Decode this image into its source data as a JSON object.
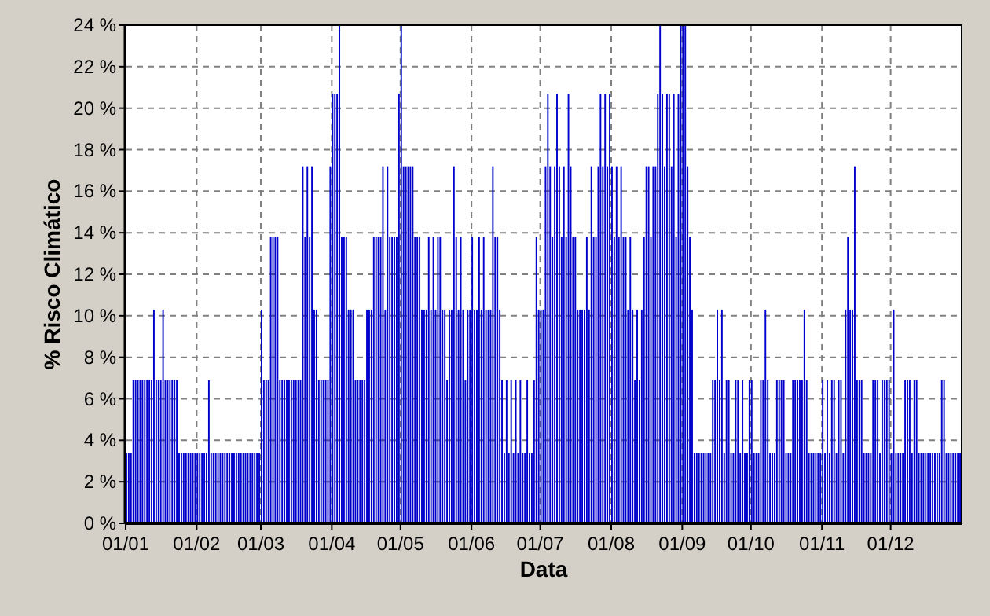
{
  "chart_data": {
    "type": "bar",
    "xlabel": "Data",
    "ylabel": "% Risco Climático",
    "color": "#0000cc",
    "grid": true,
    "xlim": [
      "--01-01",
      "--12-31"
    ],
    "xticks": [
      {
        "value": "--01-01",
        "label": "01/01"
      },
      {
        "value": "--02-01",
        "label": "01/02"
      },
      {
        "value": "--03-01",
        "label": "01/03"
      },
      {
        "value": "--04-01",
        "label": "01/04"
      },
      {
        "value": "--05-01",
        "label": "01/05"
      },
      {
        "value": "--06-01",
        "label": "01/06"
      },
      {
        "value": "--07-01",
        "label": "01/07"
      },
      {
        "value": "--08-01",
        "label": "01/08"
      },
      {
        "value": "--09-01",
        "label": "01/09"
      },
      {
        "value": "--10-01",
        "label": "01/10"
      },
      {
        "value": "--11-01",
        "label": "01/11"
      },
      {
        "value": "--12-01",
        "label": "01/12"
      }
    ],
    "ylim": [
      0,
      24
    ],
    "yticks": [
      {
        "value": 0,
        "label": "0 %"
      },
      {
        "value": 2,
        "label": "2 %"
      },
      {
        "value": 4,
        "label": "4 %"
      },
      {
        "value": 6,
        "label": "6 %"
      },
      {
        "value": 8,
        "label": "8 %"
      },
      {
        "value": 10,
        "label": "10 %"
      },
      {
        "value": 12,
        "label": "12 %"
      },
      {
        "value": 14,
        "label": "14 %"
      },
      {
        "value": 16,
        "label": "16 %"
      },
      {
        "value": 18,
        "label": "18 %"
      },
      {
        "value": 20,
        "label": "20 %"
      },
      {
        "value": 22,
        "label": "22 %"
      },
      {
        "value": 24,
        "label": "24 %"
      }
    ],
    "x": [
      "--01-01",
      "--01-02",
      "--01-03",
      "--01-04",
      "--01-05",
      "--01-06",
      "--01-07",
      "--01-08",
      "--01-09",
      "--01-10",
      "--01-11",
      "--01-12",
      "--01-13",
      "--01-14",
      "--01-15",
      "--01-16",
      "--01-17",
      "--01-18",
      "--01-19",
      "--01-20",
      "--01-21",
      "--01-22",
      "--01-23",
      "--01-24",
      "--01-25",
      "--01-26",
      "--01-27",
      "--01-28",
      "--01-29",
      "--01-30",
      "--01-31",
      "--02-01",
      "--02-02",
      "--02-03",
      "--02-04",
      "--02-05",
      "--02-06",
      "--02-07",
      "--02-08",
      "--02-09",
      "--02-10",
      "--02-11",
      "--02-12",
      "--02-13",
      "--02-14",
      "--02-15",
      "--02-16",
      "--02-17",
      "--02-18",
      "--02-19",
      "--02-20",
      "--02-21",
      "--02-22",
      "--02-23",
      "--02-24",
      "--02-25",
      "--02-26",
      "--02-27",
      "--02-28",
      "--03-01",
      "--03-02",
      "--03-03",
      "--03-04",
      "--03-05",
      "--03-06",
      "--03-07",
      "--03-08",
      "--03-09",
      "--03-10",
      "--03-11",
      "--03-12",
      "--03-13",
      "--03-14",
      "--03-15",
      "--03-16",
      "--03-17",
      "--03-18",
      "--03-19",
      "--03-20",
      "--03-21",
      "--03-22",
      "--03-23",
      "--03-24",
      "--03-25",
      "--03-26",
      "--03-27",
      "--03-28",
      "--03-29",
      "--03-30",
      "--03-31",
      "--04-01",
      "--04-02",
      "--04-03",
      "--04-04",
      "--04-05",
      "--04-06",
      "--04-07",
      "--04-08",
      "--04-09",
      "--04-10",
      "--04-11",
      "--04-12",
      "--04-13",
      "--04-14",
      "--04-15",
      "--04-16",
      "--04-17",
      "--04-18",
      "--04-19",
      "--04-20",
      "--04-21",
      "--04-22",
      "--04-23",
      "--04-24",
      "--04-25",
      "--04-26",
      "--04-27",
      "--04-28",
      "--04-29",
      "--04-30",
      "--05-01",
      "--05-02",
      "--05-03",
      "--05-04",
      "--05-05",
      "--05-06",
      "--05-07",
      "--05-08",
      "--05-09",
      "--05-10",
      "--05-11",
      "--05-12",
      "--05-13",
      "--05-14",
      "--05-15",
      "--05-16",
      "--05-17",
      "--05-18",
      "--05-19",
      "--05-20",
      "--05-21",
      "--05-22",
      "--05-23",
      "--05-24",
      "--05-25",
      "--05-26",
      "--05-27",
      "--05-28",
      "--05-29",
      "--05-30",
      "--05-31",
      "--06-01",
      "--06-02",
      "--06-03",
      "--06-04",
      "--06-05",
      "--06-06",
      "--06-07",
      "--06-08",
      "--06-09",
      "--06-10",
      "--06-11",
      "--06-12",
      "--06-13",
      "--06-14",
      "--06-15",
      "--06-16",
      "--06-17",
      "--06-18",
      "--06-19",
      "--06-20",
      "--06-21",
      "--06-22",
      "--06-23",
      "--06-24",
      "--06-25",
      "--06-26",
      "--06-27",
      "--06-28",
      "--06-29",
      "--06-30",
      "--07-01",
      "--07-02",
      "--07-03",
      "--07-04",
      "--07-05",
      "--07-06",
      "--07-07",
      "--07-08",
      "--07-09",
      "--07-10",
      "--07-11",
      "--07-12",
      "--07-13",
      "--07-14",
      "--07-15",
      "--07-16",
      "--07-17",
      "--07-18",
      "--07-19",
      "--07-20",
      "--07-21",
      "--07-22",
      "--07-23",
      "--07-24",
      "--07-25",
      "--07-26",
      "--07-27",
      "--07-28",
      "--07-29",
      "--07-30",
      "--07-31",
      "--08-01",
      "--08-02",
      "--08-03",
      "--08-04",
      "--08-05",
      "--08-06",
      "--08-07",
      "--08-08",
      "--08-09",
      "--08-10",
      "--08-11",
      "--08-12",
      "--08-13",
      "--08-14",
      "--08-15",
      "--08-16",
      "--08-17",
      "--08-18",
      "--08-19",
      "--08-20",
      "--08-21",
      "--08-22",
      "--08-23",
      "--08-24",
      "--08-25",
      "--08-26",
      "--08-27",
      "--08-28",
      "--08-29",
      "--08-30",
      "--08-31",
      "--09-01",
      "--09-02",
      "--09-03",
      "--09-04",
      "--09-05",
      "--09-06",
      "--09-07",
      "--09-08",
      "--09-09",
      "--09-10",
      "--09-11",
      "--09-12",
      "--09-13",
      "--09-14",
      "--09-15",
      "--09-16",
      "--09-17",
      "--09-18",
      "--09-19",
      "--09-20",
      "--09-21",
      "--09-22",
      "--09-23",
      "--09-24",
      "--09-25",
      "--09-26",
      "--09-27",
      "--09-28",
      "--09-29",
      "--09-30",
      "--10-01",
      "--10-02",
      "--10-03",
      "--10-04",
      "--10-05",
      "--10-06",
      "--10-07",
      "--10-08",
      "--10-09",
      "--10-10",
      "--10-11",
      "--10-12",
      "--10-13",
      "--10-14",
      "--10-15",
      "--10-16",
      "--10-17",
      "--10-18",
      "--10-19",
      "--10-20",
      "--10-21",
      "--10-22",
      "--10-23",
      "--10-24",
      "--10-25",
      "--10-26",
      "--10-27",
      "--10-28",
      "--10-29",
      "--10-30",
      "--10-31",
      "--11-01",
      "--11-02",
      "--11-03",
      "--11-04",
      "--11-05",
      "--11-06",
      "--11-07",
      "--11-08",
      "--11-09",
      "--11-10",
      "--11-11",
      "--11-12",
      "--11-13",
      "--11-14",
      "--11-15",
      "--11-16",
      "--11-17",
      "--11-18",
      "--11-19",
      "--11-20",
      "--11-21",
      "--11-22",
      "--11-23",
      "--11-24",
      "--11-25",
      "--11-26",
      "--11-27",
      "--11-28",
      "--11-29",
      "--11-30",
      "--12-01",
      "--12-02",
      "--12-03",
      "--12-04",
      "--12-05",
      "--12-06",
      "--12-07",
      "--12-08",
      "--12-09",
      "--12-10",
      "--12-11",
      "--12-12",
      "--12-13",
      "--12-14",
      "--12-15",
      "--12-16",
      "--12-17",
      "--12-18",
      "--12-19",
      "--12-20",
      "--12-21",
      "--12-22",
      "--12-23",
      "--12-24",
      "--12-25",
      "--12-26",
      "--12-27",
      "--12-28",
      "--12-29",
      "--12-30",
      "--12-31"
    ],
    "values": [
      3.4,
      3.4,
      3.4,
      6.9,
      6.9,
      6.9,
      6.9,
      6.9,
      6.9,
      6.9,
      6.9,
      6.9,
      10.3,
      6.9,
      6.9,
      6.9,
      10.3,
      6.9,
      6.9,
      6.9,
      6.9,
      6.9,
      6.9,
      3.4,
      3.4,
      3.4,
      3.4,
      3.4,
      3.4,
      3.4,
      3.4,
      3.4,
      3.4,
      3.4,
      3.4,
      3.4,
      6.9,
      3.4,
      3.4,
      3.4,
      3.4,
      3.4,
      3.4,
      3.4,
      3.4,
      3.4,
      3.4,
      3.4,
      3.4,
      3.4,
      3.4,
      3.4,
      3.4,
      3.4,
      3.4,
      3.4,
      3.4,
      3.4,
      3.4,
      10.3,
      6.9,
      6.9,
      6.9,
      13.8,
      13.8,
      13.8,
      13.8,
      6.9,
      6.9,
      6.9,
      6.9,
      6.9,
      6.9,
      6.9,
      6.9,
      6.9,
      6.9,
      17.2,
      13.8,
      17.2,
      13.8,
      17.2,
      10.3,
      10.3,
      6.9,
      6.9,
      6.9,
      6.9,
      6.9,
      17.2,
      20.7,
      20.7,
      20.7,
      24,
      13.8,
      13.8,
      13.8,
      10.3,
      10.3,
      10.3,
      6.9,
      6.9,
      6.9,
      6.9,
      6.9,
      10.3,
      10.3,
      10.3,
      13.8,
      13.8,
      13.8,
      13.8,
      17.2,
      10.3,
      17.2,
      13.8,
      13.8,
      13.8,
      13.8,
      20.7,
      24,
      17.2,
      17.2,
      17.2,
      17.2,
      17.2,
      13.8,
      13.8,
      13.8,
      10.3,
      10.3,
      10.3,
      13.8,
      10.3,
      13.8,
      10.3,
      13.8,
      13.8,
      10.3,
      10.3,
      6.9,
      10.3,
      10.3,
      17.2,
      13.8,
      10.3,
      13.8,
      10.3,
      6.9,
      10.3,
      10.3,
      13.8,
      10.3,
      10.3,
      13.8,
      10.3,
      13.8,
      10.3,
      10.3,
      10.3,
      17.2,
      13.8,
      13.8,
      10.3,
      6.9,
      3.4,
      6.9,
      3.4,
      6.9,
      3.4,
      6.9,
      3.4,
      6.9,
      3.4,
      3.4,
      6.9,
      3.4,
      3.4,
      6.9,
      13.8,
      10.3,
      10.3,
      10.3,
      17.2,
      20.7,
      17.2,
      13.8,
      17.2,
      20.7,
      17.2,
      13.8,
      17.2,
      13.8,
      20.7,
      17.2,
      13.8,
      13.8,
      10.3,
      10.3,
      10.3,
      10.3,
      13.8,
      10.3,
      17.2,
      13.8,
      13.8,
      17.2,
      20.7,
      17.2,
      20.7,
      17.2,
      20.7,
      17.2,
      13.8,
      17.2,
      13.8,
      17.2,
      13.8,
      13.8,
      10.3,
      13.8,
      10.3,
      6.9,
      10.3,
      6.9,
      10.3,
      13.8,
      17.2,
      17.2,
      13.8,
      17.2,
      17.2,
      20.7,
      24,
      20.7,
      17.2,
      20.7,
      20.7,
      17.2,
      20.7,
      13.8,
      20.7,
      24,
      24,
      24,
      17.2,
      13.8,
      10.3,
      3.4,
      3.4,
      3.4,
      3.4,
      3.4,
      3.4,
      3.4,
      3.4,
      6.9,
      6.9,
      10.3,
      6.9,
      10.3,
      3.4,
      6.9,
      6.9,
      3.4,
      3.4,
      6.9,
      6.9,
      3.4,
      6.9,
      3.4,
      3.4,
      6.9,
      6.9,
      3.4,
      3.4,
      3.4,
      6.9,
      6.9,
      10.3,
      6.9,
      3.4,
      3.4,
      3.4,
      6.9,
      6.9,
      6.9,
      6.9,
      3.4,
      3.4,
      3.4,
      6.9,
      6.9,
      6.9,
      6.9,
      6.9,
      10.3,
      6.9,
      3.4,
      3.4,
      3.4,
      3.4,
      3.4,
      3.4,
      6.9,
      3.4,
      6.9,
      3.4,
      6.9,
      6.9,
      3.4,
      6.9,
      6.9,
      3.4,
      10.3,
      13.8,
      10.3,
      10.3,
      17.2,
      6.9,
      6.9,
      6.9,
      3.4,
      3.4,
      3.4,
      3.4,
      6.9,
      6.9,
      6.9,
      3.4,
      6.9,
      6.9,
      6.9,
      6.9,
      3.4,
      10.3,
      3.4,
      3.4,
      3.4,
      3.4,
      6.9,
      6.9,
      6.9,
      3.4,
      6.9,
      6.9,
      3.4,
      3.4,
      3.4,
      3.4,
      3.4,
      3.4,
      3.4,
      3.4,
      3.4,
      3.4,
      6.9,
      6.9,
      3.4,
      3.4,
      3.4,
      3.4,
      3.4,
      3.4,
      3.4
    ]
  }
}
